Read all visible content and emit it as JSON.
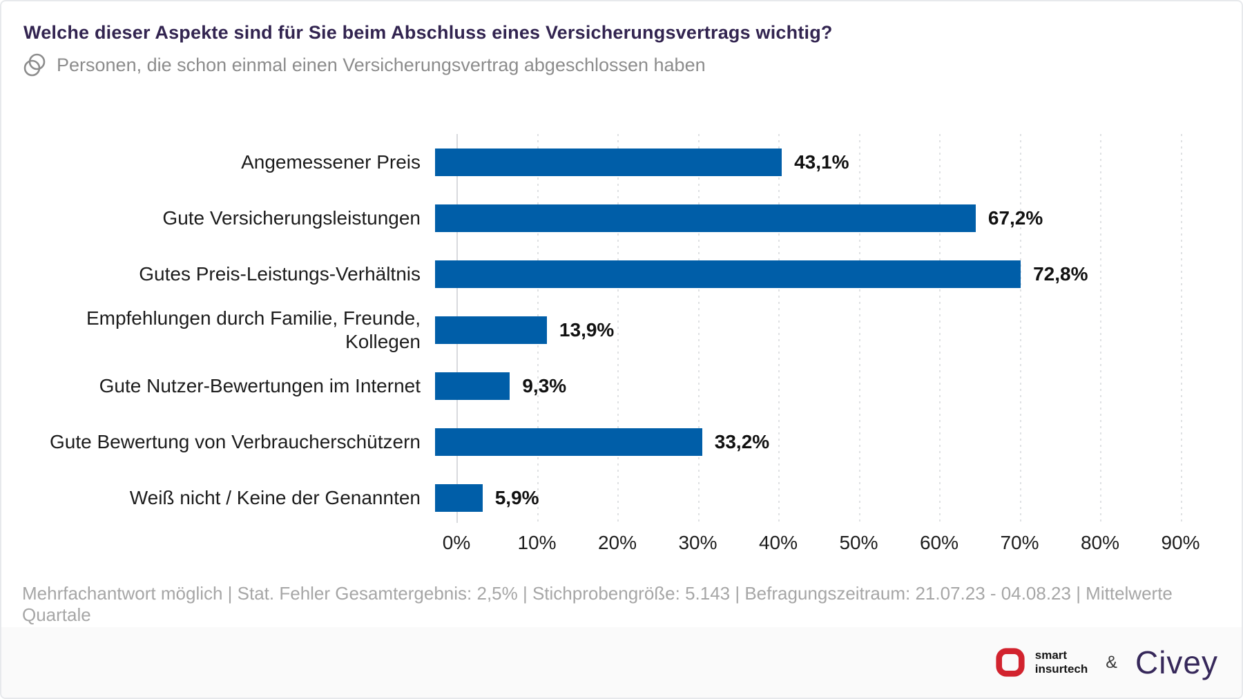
{
  "header": {
    "title": "Welche dieser Aspekte sind für Sie beim Abschluss eines Versicherungsvertrags wichtig?",
    "subtitle": "Personen, die schon einmal einen Versicherungsvertrag abgeschlossen haben"
  },
  "chart_data": {
    "type": "bar",
    "orientation": "horizontal",
    "title": "Welche dieser Aspekte sind für Sie beim Abschluss eines Versicherungsvertrags wichtig?",
    "categories": [
      "Angemessener Preis",
      "Gute Versicherungsleistungen",
      "Gutes Preis-Leistungs-Verhältnis",
      "Empfehlungen durch Familie, Freunde,\nKollegen",
      "Gute Nutzer-Bewertungen im Internet",
      "Gute Bewertung von Verbraucherschützern",
      "Weiß nicht / Keine der Genannten"
    ],
    "values": [
      43.1,
      67.2,
      72.8,
      13.9,
      9.3,
      33.2,
      5.9
    ],
    "value_labels": [
      "43,1%",
      "67,2%",
      "72,8%",
      "13,9%",
      "9,3%",
      "33,2%",
      "5,9%"
    ],
    "x_ticks": [
      "0%",
      "10%",
      "20%",
      "30%",
      "40%",
      "50%",
      "60%",
      "70%",
      "80%",
      "90%"
    ],
    "xlim": [
      0,
      90
    ],
    "grid": "vertical-dotted",
    "legend": "none",
    "bar_color": "#005EA8"
  },
  "footer": {
    "note": "Mehrfachantwort möglich | Stat. Fehler Gesamtergebnis: 2,5% | Stichprobengröße: 5.143 | Befragungszeitraum: 21.07.23 - 04.08.23 | Mittelwerte Quartale"
  },
  "branding": {
    "smart_insurtech_line1": "smart",
    "smart_insurtech_line2": "insurtech",
    "ampersand": "&",
    "civey": "Civey"
  },
  "colors": {
    "bar_blue": "#005EA8",
    "title_purple": "#322450",
    "subtitle_gray": "#8C8C8C",
    "footer_gray": "#A6A6A6",
    "smart_red": "#D2232E",
    "civey_purple": "#36285A"
  }
}
